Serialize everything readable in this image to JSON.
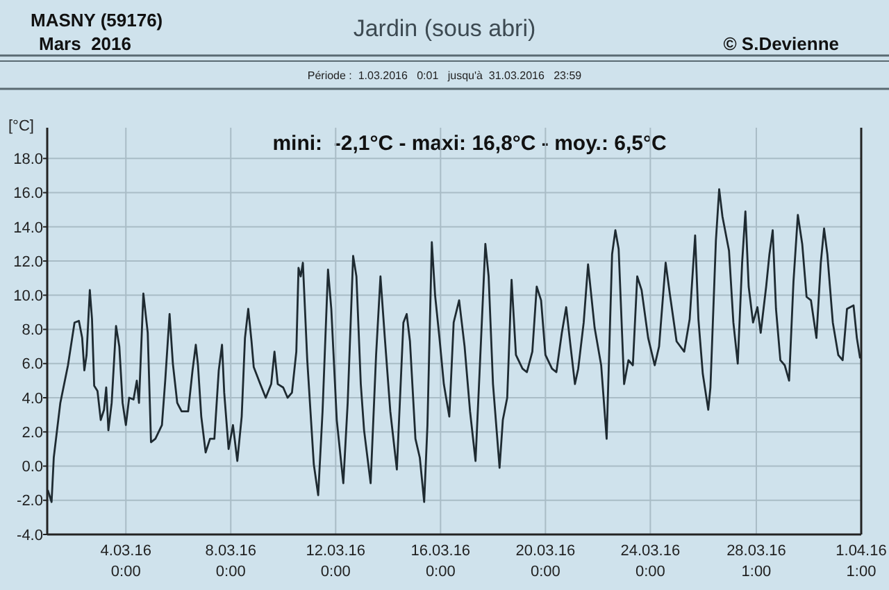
{
  "chart_data": {
    "type": "line",
    "title": "Jardin (sous abri)",
    "subtitle": "Période :  1.03.2016   0:01   jusqu'à  31.03.2016   23:59",
    "ylabel": "[°C]",
    "annotations": [
      "MASNY (59176)",
      "Mars  2016",
      "© S.Devienne",
      "mini:  -2,1°C - maxi: 16,8°C - moy.: 6,5°C"
    ],
    "xlim": [
      "2016-03-01T00:01",
      "2016-04-01T01:00"
    ],
    "ylim": [
      -4,
      19.8
    ],
    "xticks": [
      {
        "value": "2016-03-04T00:00",
        "label": "4.03.16\n0:00"
      },
      {
        "value": "2016-03-08T00:00",
        "label": "8.03.16\n0:00"
      },
      {
        "value": "2016-03-12T00:00",
        "label": "12.03.16\n0:00"
      },
      {
        "value": "2016-03-16T00:00",
        "label": "16.03.16\n0:00"
      },
      {
        "value": "2016-03-20T00:00",
        "label": "20.03.16\n0:00"
      },
      {
        "value": "2016-03-24T00:00",
        "label": "24.03.16\n0:00"
      },
      {
        "value": "2016-03-28T01:00",
        "label": "28.03.16\n1:00"
      },
      {
        "value": "2016-04-01T01:00",
        "label": "1.04.16\n1:00"
      }
    ],
    "yticks": [
      {
        "value": -4,
        "label": "-4.0"
      },
      {
        "value": -2,
        "label": "-2.0"
      },
      {
        "value": 0,
        "label": "0.0"
      },
      {
        "value": 2,
        "label": "2.0"
      },
      {
        "value": 4,
        "label": "4.0"
      },
      {
        "value": 6,
        "label": "6.0"
      },
      {
        "value": 8,
        "label": "8.0"
      },
      {
        "value": 10,
        "label": "10.0"
      },
      {
        "value": 12,
        "label": "12.0"
      },
      {
        "value": 14,
        "label": "14.0"
      },
      {
        "value": 16,
        "label": "16.0"
      },
      {
        "value": 18,
        "label": "18.0"
      }
    ],
    "grid": true,
    "line_style": "solid",
    "marker": "none",
    "series": [
      {
        "color": "#1e2a31",
        "x": [
          "2016-03-01T00:30",
          "2016-03-01T04:00",
          "2016-03-01T06:00",
          "2016-03-01T12:00",
          "2016-03-01T19:00",
          "2016-03-02T01:00",
          "2016-03-02T05:00",
          "2016-03-02T08:00",
          "2016-03-02T10:00",
          "2016-03-02T12:00",
          "2016-03-02T15:00",
          "2016-03-02T17:00",
          "2016-03-02T19:00",
          "2016-03-02T22:00",
          "2016-03-03T01:00",
          "2016-03-03T04:00",
          "2016-03-03T06:00",
          "2016-03-03T08:00",
          "2016-03-03T11:00",
          "2016-03-03T15:00",
          "2016-03-03T18:00",
          "2016-03-03T21:00",
          "2016-03-04T00:00",
          "2016-03-04T03:00",
          "2016-03-04T07:00",
          "2016-03-04T10:00",
          "2016-03-04T12:00",
          "2016-03-04T16:00",
          "2016-03-04T20:00",
          "2016-03-04T23:00",
          "2016-03-05T03:00",
          "2016-03-05T09:00",
          "2016-03-05T12:00",
          "2016-03-05T16:00",
          "2016-03-05T19:00",
          "2016-03-05T23:00",
          "2016-03-06T03:00",
          "2016-03-06T09:00",
          "2016-03-06T13:00",
          "2016-03-06T16:00",
          "2016-03-06T18:00",
          "2016-03-06T21:00",
          "2016-03-07T01:00",
          "2016-03-07T05:00",
          "2016-03-07T09:00",
          "2016-03-07T13:00",
          "2016-03-07T16:00",
          "2016-03-07T18:00",
          "2016-03-07T22:00",
          "2016-03-08T02:00",
          "2016-03-08T06:00",
          "2016-03-08T10:00",
          "2016-03-08T13:00",
          "2016-03-08T16:00",
          "2016-03-08T19:00",
          "2016-03-08T21:00",
          "2016-03-09T03:00",
          "2016-03-09T08:00",
          "2016-03-09T13:00",
          "2016-03-09T16:00",
          "2016-03-09T19:00",
          "2016-03-10T00:00",
          "2016-03-10T04:00",
          "2016-03-10T08:00",
          "2016-03-10T12:00",
          "2016-03-10T14:00",
          "2016-03-10T16:00",
          "2016-03-10T18:00",
          "2016-03-10T22:00",
          "2016-03-11T04:00",
          "2016-03-11T08:00",
          "2016-03-11T12:00",
          "2016-03-11T17:00",
          "2016-03-11T20:00",
          "2016-03-12T01:00",
          "2016-03-12T07:00",
          "2016-03-12T11:00",
          "2016-03-12T16:00",
          "2016-03-12T19:00",
          "2016-03-12T23:00",
          "2016-03-13T02:00",
          "2016-03-13T08:00",
          "2016-03-13T13:00",
          "2016-03-13T17:00",
          "2016-03-13T21:00",
          "2016-03-14T02:00",
          "2016-03-14T08:00",
          "2016-03-14T14:00",
          "2016-03-14T17:00",
          "2016-03-14T20:00",
          "2016-03-15T01:00",
          "2016-03-15T05:00",
          "2016-03-15T09:00",
          "2016-03-15T12:00",
          "2016-03-15T16:00",
          "2016-03-15T19:00",
          "2016-03-15T23:00",
          "2016-03-16T03:00",
          "2016-03-16T08:00",
          "2016-03-16T12:00",
          "2016-03-16T17:00",
          "2016-03-16T22:00",
          "2016-03-17T03:00",
          "2016-03-17T08:00",
          "2016-03-17T12:00",
          "2016-03-17T17:00",
          "2016-03-17T20:00",
          "2016-03-18T00:00",
          "2016-03-18T06:00",
          "2016-03-18T09:00",
          "2016-03-18T13:00",
          "2016-03-18T17:00",
          "2016-03-18T21:00",
          "2016-03-19T03:00",
          "2016-03-19T07:00",
          "2016-03-19T12:00",
          "2016-03-19T16:00",
          "2016-03-19T20:00",
          "2016-03-20T00:00",
          "2016-03-20T06:00",
          "2016-03-20T10:00",
          "2016-03-20T15:00",
          "2016-03-20T19:00",
          "2016-03-20T23:00",
          "2016-03-21T03:00",
          "2016-03-21T06:00",
          "2016-03-21T11:00",
          "2016-03-21T15:00",
          "2016-03-21T21:00",
          "2016-03-22T03:00",
          "2016-03-22T08:00",
          "2016-03-22T13:00",
          "2016-03-22T16:00",
          "2016-03-22T19:00",
          "2016-03-23T00:00",
          "2016-03-23T04:00",
          "2016-03-23T08:00",
          "2016-03-23T12:00",
          "2016-03-23T16:00",
          "2016-03-23T22:00",
          "2016-03-24T04:00",
          "2016-03-24T08:00",
          "2016-03-24T14:00",
          "2016-03-24T18:00",
          "2016-03-25T00:00",
          "2016-03-25T07:00",
          "2016-03-25T12:00",
          "2016-03-25T17:00",
          "2016-03-25T20:00",
          "2016-03-26T00:00",
          "2016-03-26T05:00",
          "2016-03-26T07:00",
          "2016-03-26T12:00",
          "2016-03-26T15:00",
          "2016-03-26T18:00",
          "2016-03-27T00:00",
          "2016-03-27T04:00",
          "2016-03-27T08:00",
          "2016-03-27T12:00",
          "2016-03-27T15:00",
          "2016-03-27T18:00",
          "2016-03-27T22:00",
          "2016-03-28T02:00",
          "2016-03-28T05:00",
          "2016-03-28T10:00",
          "2016-03-28T13:00",
          "2016-03-28T16:00",
          "2016-03-28T19:00",
          "2016-03-28T23:00",
          "2016-03-29T03:00",
          "2016-03-29T07:00",
          "2016-03-29T11:00",
          "2016-03-29T15:00",
          "2016-03-29T19:00",
          "2016-03-29T23:00",
          "2016-03-30T03:00",
          "2016-03-30T08:00",
          "2016-03-30T12:00",
          "2016-03-30T15:00",
          "2016-03-30T18:00",
          "2016-03-30T23:00",
          "2016-03-31T04:00",
          "2016-03-31T08:00",
          "2016-03-31T12:00",
          "2016-03-31T18:00",
          "2016-03-31T21:00",
          "2016-03-31T23:59"
        ],
        "values": [
          -1.4,
          -2.1,
          0.5,
          3.7,
          5.9,
          8.4,
          8.5,
          7.5,
          5.6,
          6.5,
          10.3,
          8.6,
          4.7,
          4.4,
          2.7,
          3.3,
          4.6,
          2.1,
          3.7,
          8.2,
          7.0,
          3.7,
          2.4,
          4.0,
          3.9,
          5.0,
          3.7,
          10.1,
          7.8,
          1.4,
          1.6,
          2.4,
          5.0,
          8.9,
          6.0,
          3.7,
          3.2,
          3.2,
          5.6,
          7.1,
          5.9,
          2.9,
          0.8,
          1.6,
          1.6,
          5.6,
          7.1,
          4.3,
          1.0,
          2.4,
          0.3,
          2.9,
          7.5,
          9.2,
          7.3,
          5.8,
          4.8,
          4.0,
          4.8,
          6.7,
          4.8,
          4.6,
          4.0,
          4.3,
          6.7,
          11.6,
          11.1,
          11.9,
          6.2,
          0.1,
          -1.7,
          3.2,
          11.5,
          9.2,
          2.7,
          -1.0,
          3.7,
          12.3,
          11.1,
          4.8,
          2.1,
          -1.0,
          6.5,
          11.1,
          7.5,
          3.2,
          -0.2,
          8.4,
          8.9,
          7.3,
          1.6,
          0.5,
          -2.1,
          2.4,
          13.1,
          10.0,
          7.5,
          4.8,
          2.9,
          8.4,
          9.7,
          7.0,
          3.2,
          0.3,
          5.9,
          13.0,
          11.1,
          4.8,
          -0.1,
          2.7,
          4.0,
          10.9,
          6.5,
          5.7,
          5.5,
          6.7,
          10.5,
          9.7,
          6.5,
          5.7,
          5.5,
          7.8,
          9.3,
          7.0,
          4.8,
          5.7,
          8.4,
          11.8,
          8.1,
          5.9,
          1.6,
          12.4,
          13.8,
          12.7,
          4.8,
          6.2,
          5.9,
          11.1,
          10.3,
          7.5,
          5.9,
          7.0,
          11.9,
          10.0,
          7.3,
          6.7,
          8.6,
          13.5,
          8.6,
          5.4,
          3.3,
          4.6,
          13.2,
          16.2,
          14.6,
          12.6,
          8.4,
          6.0,
          11.9,
          14.9,
          10.5,
          8.4,
          9.3,
          7.8,
          10.5,
          12.4,
          13.8,
          9.2,
          6.2,
          5.9,
          5.0,
          10.8,
          14.7,
          13.0,
          9.9,
          9.7,
          7.5,
          11.9,
          13.9,
          12.4,
          8.4,
          6.5,
          6.2,
          9.2,
          9.4,
          7.5,
          6.3
        ]
      }
    ]
  }
}
